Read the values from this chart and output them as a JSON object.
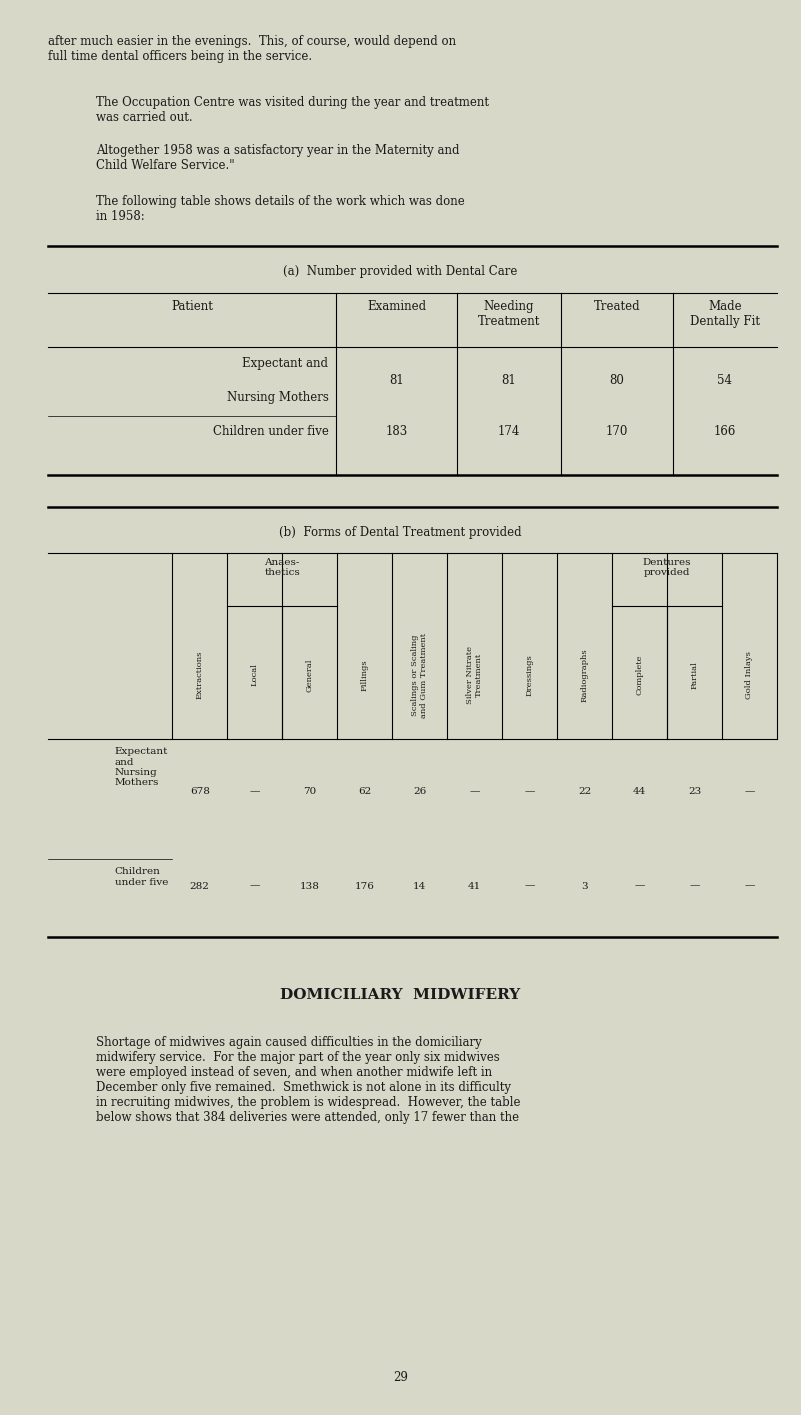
{
  "bg_color": "#d8d8c8",
  "text_color": "#1a1a1a",
  "page_width": 8.01,
  "page_height": 14.15,
  "para1": "after much easier in the evenings.  This, of course, would depend on\nfull time dental officers being in the service.",
  "para2": "The Occupation Centre was visited during the year and treatment\nwas carried out.",
  "para3": "Altogether 1958 was a satisfactory year in the Maternity and\nChild Welfare Service.\"",
  "para4": "The following table shows details of the work which was done\nin 1958:",
  "table_a_title": "(a)  Number provided with Dental Care",
  "table_a_headers": [
    "Patient",
    "Examined",
    "Needing\nTreatment",
    "Treated",
    "Made\nDentally Fit"
  ],
  "table_b_title": "(b)  Forms of Dental Treatment provided",
  "table_b_col_headers": [
    "Extractions",
    "Local",
    "General",
    "Fillings",
    "Scalings or Scaling\nand Gum Treatment",
    "Silver Nitrate\nTreatment",
    "Dressings",
    "Radiographs",
    "Complete",
    "Partial",
    "Gold Inlays"
  ],
  "row1_b": [
    "678",
    "—",
    "70",
    "62",
    "26",
    "—",
    "—",
    "22",
    "44",
    "23",
    "—"
  ],
  "row2_b": [
    "282",
    "—",
    "138",
    "176",
    "14",
    "41",
    "—",
    "3",
    "—",
    "—",
    "—"
  ],
  "domiciliary_title": "DOMICILIARY  MIDWIFERY",
  "domiciliary_para1": "Shortage of midwives again caused difficulties in the domiciliary\nmidwifery service.  For the major part of the year only six midwives\nwere employed instead of seven, and when another midwife left in\nDecember only five remained.  Smethwick is not alone in its difficulty\nin recruiting midwives, the problem is widespread.  However, the table\nbelow shows that 384 deliveries were attended, only 17 fewer than the",
  "page_number": "29"
}
